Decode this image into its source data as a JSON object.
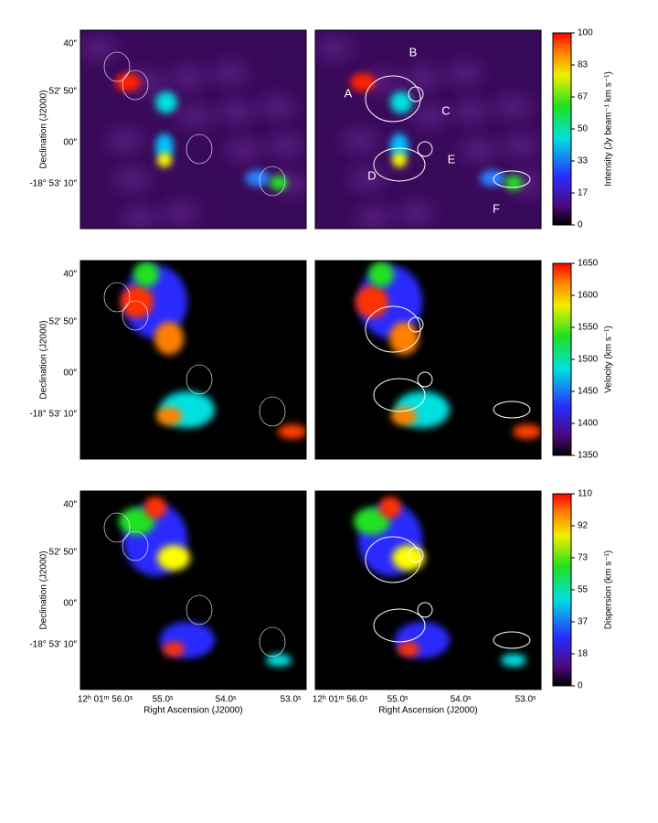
{
  "axes": {
    "y_label": "Declination (J2000)",
    "x_label": "Right Ascension (J2000)",
    "y_ticks": [
      "40″",
      "52′ 50″",
      "00″",
      "-18° 53′ 10″"
    ],
    "x_ticks": [
      "12ʰ 01ᵐ 56.0ˢ",
      "55.0ˢ",
      "54.0ˢ",
      "53.0ˢ"
    ]
  },
  "region_labels": [
    "A",
    "B",
    "C",
    "D",
    "E",
    "F"
  ],
  "colorbars": [
    {
      "label": "Intensity (Jy beam⁻¹ km s⁻¹)",
      "ticks": [
        100,
        83,
        67,
        50,
        33,
        17,
        0
      ]
    },
    {
      "label": "Velocity (km s⁻¹)",
      "ticks": [
        1650,
        1600,
        1550,
        1500,
        1450,
        1400,
        1350
      ]
    },
    {
      "label": "Dispersion (km s⁻¹)",
      "ticks": [
        110,
        92,
        73,
        55,
        37,
        18,
        0
      ]
    }
  ]
}
